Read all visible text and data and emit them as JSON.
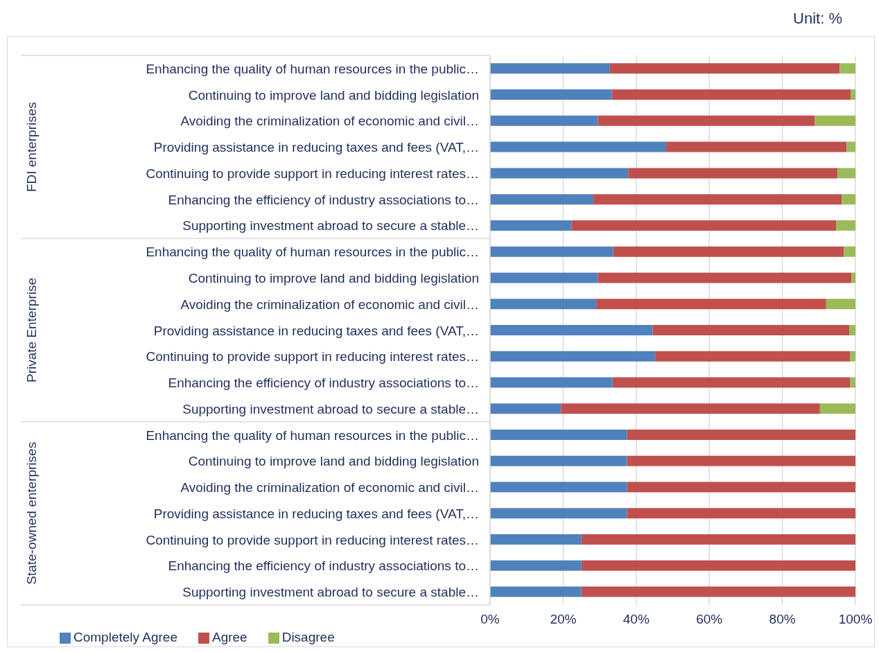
{
  "chart_data": {
    "type": "bar",
    "orientation": "horizontal",
    "stacked": true,
    "categories": [
      "Enhancing the quality of human resources in the public…",
      "Continuing to improve land and bidding legislation",
      "Avoiding the criminalization of economic and civil…",
      "Providing assistance in reducing taxes and fees (VAT,…",
      "Continuing to provide support in reducing interest rates…",
      "Enhancing the efficiency of industry associations to…",
      "Supporting investment abroad to secure a stable…",
      "Enhancing the quality of human resources in the public…",
      "Continuing to improve land and bidding legislation",
      "Avoiding the criminalization of economic and civil…",
      "Providing assistance in reducing taxes and fees (VAT,…",
      "Continuing to provide support in reducing interest rates…",
      "Enhancing the efficiency of industry associations to…",
      "Supporting investment abroad to secure a stable…",
      "Enhancing the quality of human resources in the public…",
      "Continuing to improve land and bidding legislation",
      "Avoiding the criminalization of economic and civil…",
      "Providing assistance in reducing taxes and fees (VAT,…",
      "Continuing to provide support in reducing interest rates…",
      "Enhancing the efficiency of industry associations to…",
      "Supporting investment abroad to secure a stable…"
    ],
    "series": [
      {
        "name": "Completely Agree",
        "color": "#4f81bd",
        "values": [
          32.8,
          33.3,
          29.5,
          48.2,
          37.8,
          28.3,
          22.3,
          33.7,
          29.5,
          29.0,
          44.5,
          45.2,
          33.5,
          19.4,
          37.5,
          37.5,
          37.5,
          37.5,
          25,
          25,
          25
        ]
      },
      {
        "name": "Agree",
        "color": "#c0504d",
        "values": [
          62.9,
          65.4,
          59.4,
          49.4,
          57.3,
          68.0,
          72.4,
          63.1,
          69.4,
          63.0,
          53.8,
          53.4,
          65.1,
          70.9,
          62.5,
          62.5,
          62.5,
          62.5,
          75,
          75,
          75
        ]
      },
      {
        "name": "Disagree",
        "color": "#9bbb59",
        "values": [
          4.3,
          1.3,
          11.1,
          2.4,
          4.9,
          3.7,
          5.3,
          3.2,
          1.1,
          8.0,
          1.7,
          1.4,
          1.4,
          9.7,
          0,
          0,
          0,
          0,
          0,
          0,
          0
        ]
      }
    ],
    "xlim": [
      0,
      100
    ],
    "xticks": [
      {
        "value": 0,
        "label": "0%"
      },
      {
        "value": 20,
        "label": "20%"
      },
      {
        "value": 40,
        "label": "40%"
      },
      {
        "value": 60,
        "label": "60%"
      },
      {
        "value": 80,
        "label": "80%"
      },
      {
        "value": 100,
        "label": "100%"
      }
    ],
    "grid": "x",
    "legend": "bottom left",
    "annotations": [
      "Unit: %",
      "FDI enterprises",
      "Private Enterprise",
      "State-owned enterprises"
    ]
  }
}
